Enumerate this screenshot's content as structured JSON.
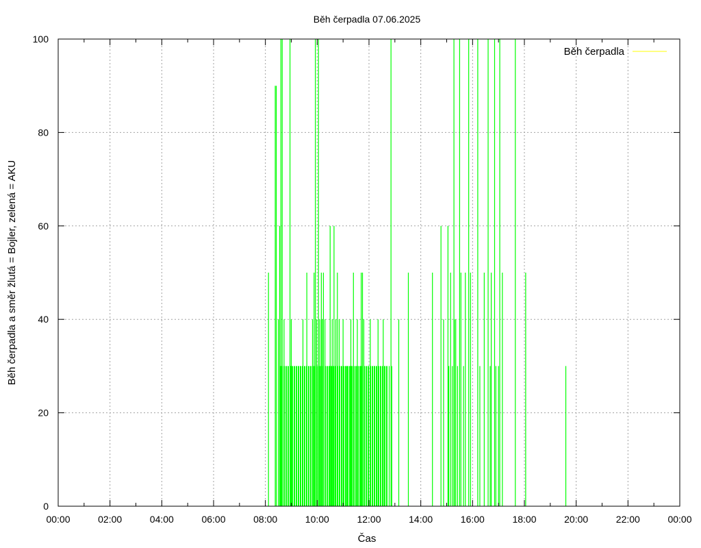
{
  "chart_data": {
    "type": "bar",
    "title": "Běh čerpadla 07.06.2025",
    "xlabel": "Čas",
    "ylabel": "Běh čerpadla a směr žlutá = Bojler, zelená = AKU",
    "xlim": [
      0,
      24
    ],
    "ylim": [
      0,
      100
    ],
    "grid": true,
    "legend_position": "top-right",
    "x_tick_labels": [
      "00:00",
      "02:00",
      "04:00",
      "06:00",
      "08:00",
      "10:00",
      "12:00",
      "14:00",
      "16:00",
      "18:00",
      "20:00",
      "22:00",
      "00:00"
    ],
    "y_tick_labels": [
      "0",
      "20",
      "40",
      "60",
      "80",
      "100"
    ],
    "legend": [
      {
        "label": "Běh čerpadla",
        "color": "#ffff00"
      }
    ],
    "series": [
      {
        "name": "Běh čerpadla",
        "color": "#00ff00",
        "x_unit": "hours",
        "points": [
          [
            8.12,
            50
          ],
          [
            8.38,
            90
          ],
          [
            8.42,
            90
          ],
          [
            8.5,
            40
          ],
          [
            8.55,
            60
          ],
          [
            8.6,
            100
          ],
          [
            8.65,
            100
          ],
          [
            8.72,
            40
          ],
          [
            8.95,
            100
          ],
          [
            9.0,
            40
          ],
          [
            9.45,
            40
          ],
          [
            9.6,
            50
          ],
          [
            9.82,
            40
          ],
          [
            9.88,
            50
          ],
          [
            9.93,
            100
          ],
          [
            9.98,
            40
          ],
          [
            10.05,
            100
          ],
          [
            10.1,
            40
          ],
          [
            10.16,
            50
          ],
          [
            10.2,
            40
          ],
          [
            10.24,
            50
          ],
          [
            10.3,
            40
          ],
          [
            10.5,
            60
          ],
          [
            10.58,
            40
          ],
          [
            10.65,
            60
          ],
          [
            10.72,
            40
          ],
          [
            10.78,
            50
          ],
          [
            10.85,
            40
          ],
          [
            11.0,
            40
          ],
          [
            11.15,
            30
          ],
          [
            11.3,
            40
          ],
          [
            11.4,
            50
          ],
          [
            11.55,
            40
          ],
          [
            11.7,
            50
          ],
          [
            11.75,
            50
          ],
          [
            11.8,
            40
          ],
          [
            12.05,
            40
          ],
          [
            12.2,
            30
          ],
          [
            12.35,
            40
          ],
          [
            12.55,
            40
          ],
          [
            12.78,
            30
          ],
          [
            12.85,
            100
          ],
          [
            12.88,
            30
          ],
          [
            13.15,
            40
          ],
          [
            13.52,
            50
          ],
          [
            14.45,
            50
          ],
          [
            14.78,
            60
          ],
          [
            14.88,
            40
          ],
          [
            15.05,
            60
          ],
          [
            15.08,
            30
          ],
          [
            15.15,
            50
          ],
          [
            15.22,
            30
          ],
          [
            15.28,
            100
          ],
          [
            15.3,
            40
          ],
          [
            15.35,
            40
          ],
          [
            15.42,
            30
          ],
          [
            15.5,
            100
          ],
          [
            15.55,
            50
          ],
          [
            15.65,
            30
          ],
          [
            15.72,
            50
          ],
          [
            15.85,
            100
          ],
          [
            15.92,
            50
          ],
          [
            16.2,
            100
          ],
          [
            16.28,
            30
          ],
          [
            16.45,
            50
          ],
          [
            16.6,
            100
          ],
          [
            16.68,
            30
          ],
          [
            16.72,
            50
          ],
          [
            16.85,
            100
          ],
          [
            16.9,
            30
          ],
          [
            17.0,
            30
          ],
          [
            17.05,
            100
          ],
          [
            17.15,
            50
          ],
          [
            17.65,
            100
          ],
          [
            18.05,
            50
          ],
          [
            19.6,
            30
          ]
        ],
        "dense_block": {
          "from": 8.55,
          "to": 12.7,
          "value": 30
        }
      }
    ]
  }
}
